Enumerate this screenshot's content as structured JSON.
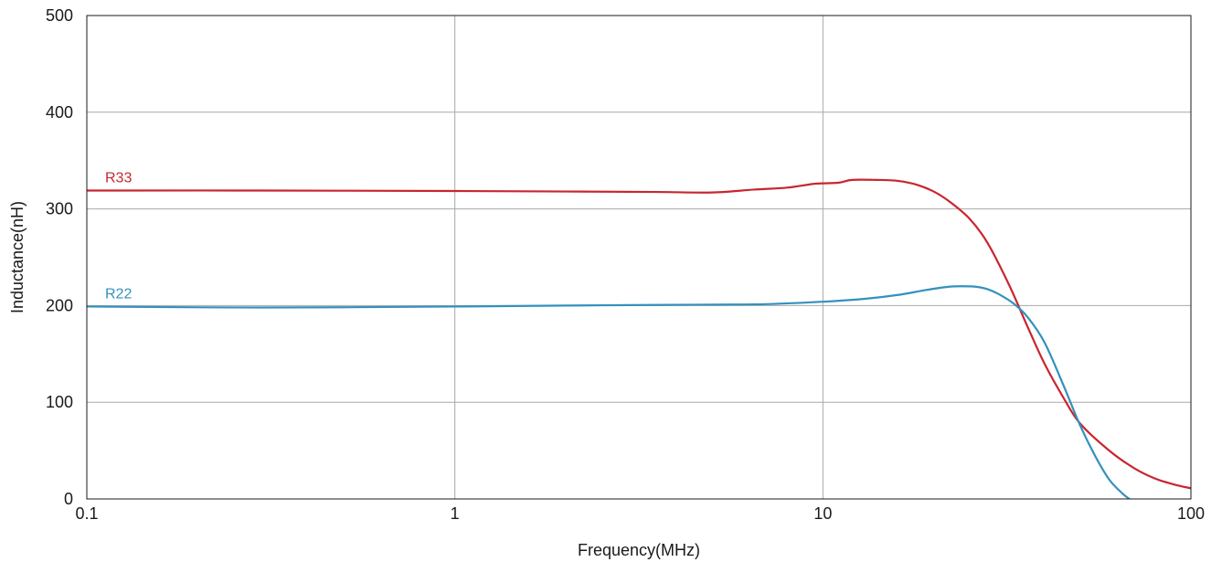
{
  "chart_data": {
    "type": "line",
    "xlabel": "Frequency(MHz)",
    "ylabel": "Inductance(nH)",
    "x_scale": "log",
    "xlim": [
      0.1,
      100
    ],
    "ylim": [
      0,
      500
    ],
    "x_ticks": [
      0.1,
      1,
      10,
      100
    ],
    "x_tick_labels": [
      "0.1",
      "1",
      "10",
      "100"
    ],
    "y_ticks": [
      0,
      100,
      200,
      300,
      400,
      500
    ],
    "y_tick_labels": [
      "0",
      "100",
      "200",
      "300",
      "400",
      "500"
    ],
    "grid": true,
    "legend": "inline labels at left",
    "series": [
      {
        "name": "R33",
        "color": "#c8262f",
        "x": [
          0.1,
          0.3,
          1,
          2,
          3.5,
          5,
          6.5,
          8,
          9.5,
          11,
          12,
          14,
          16,
          18,
          20,
          22,
          25,
          28,
          32,
          36,
          40,
          45,
          50,
          60,
          70,
          80,
          90,
          100
        ],
        "y": [
          319,
          319,
          318.5,
          318,
          317.5,
          317,
          320,
          322,
          326,
          327,
          330,
          330,
          329,
          325,
          318,
          308,
          290,
          265,
          222,
          178,
          140,
          105,
          78,
          50,
          32,
          21,
          15,
          11
        ]
      },
      {
        "name": "R22",
        "color": "#3391bd",
        "x": [
          0.1,
          0.3,
          1,
          2,
          3,
          5,
          7,
          10,
          13,
          16,
          19,
          22,
          24,
          26,
          28,
          30,
          33,
          36,
          40,
          45,
          50,
          55,
          60,
          65,
          68
        ],
        "y": [
          199,
          198,
          199,
          200,
          200.5,
          201,
          201.5,
          204,
          207,
          211,
          216,
          219.5,
          220,
          219.5,
          217,
          212,
          202,
          188,
          162,
          118,
          76,
          44,
          20,
          6,
          0
        ]
      }
    ]
  }
}
